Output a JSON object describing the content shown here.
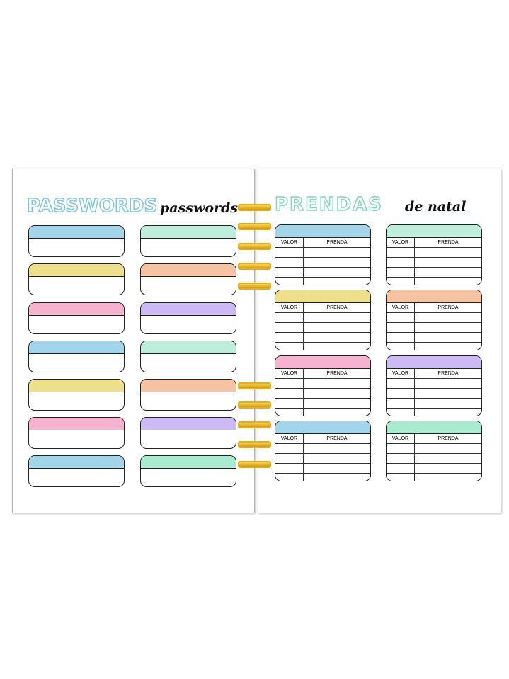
{
  "left_page": {
    "title": "PASSWORDS",
    "subtitle": "passwords",
    "columns": [
      [
        "#a3d5ea",
        "#eee08a",
        "#f5b3cf",
        "#a3d5ea",
        "#eee08a",
        "#f5b3cf",
        "#a3d5ea"
      ],
      [
        "#bdeedb",
        "#f5c3a1",
        "#cbbaf4",
        "#bdeedb",
        "#f5c3a1",
        "#cbbaf4",
        "#a9ebd0"
      ]
    ],
    "title_color": "#7cc6e4"
  },
  "right_page": {
    "title": "PRENDAS",
    "subtitle": "de natal",
    "title_color": "#7fd8bb",
    "col_valor": "VALOR",
    "col_prenda": "PRENDA",
    "columns": [
      [
        "#a3d5ea",
        "#eee08a",
        "#f5b3cf",
        "#a3d5ea"
      ],
      [
        "#bdeedb",
        "#f5c3a1",
        "#cbbaf4",
        "#a9ebd0"
      ]
    ]
  },
  "binding": {
    "color": "#e6ad14"
  }
}
